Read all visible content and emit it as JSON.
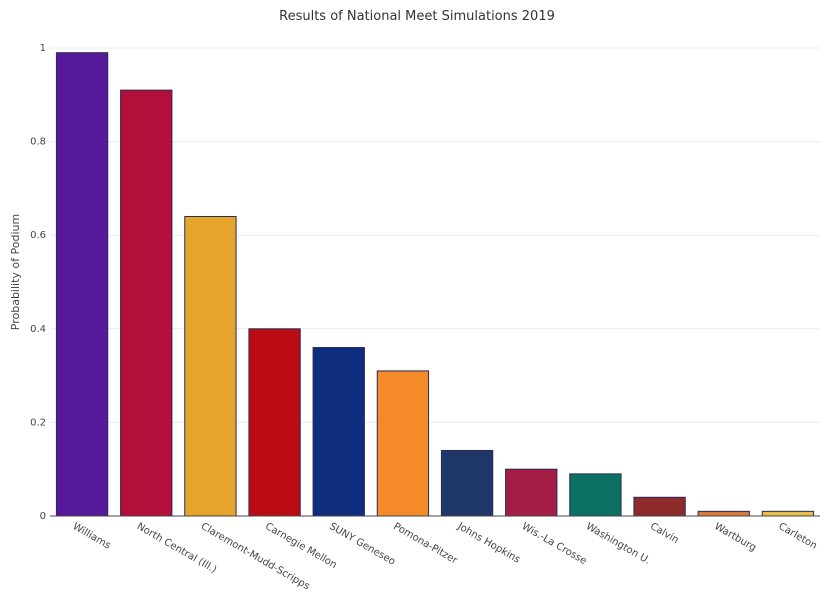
{
  "chart_data": {
    "type": "bar",
    "title": "Results of National Meet Simulations 2019",
    "xlabel": "",
    "ylabel": "Probability of Podium",
    "ylim": [
      0,
      1
    ],
    "yticks": [
      0,
      0.2,
      0.4,
      0.6,
      0.8,
      1
    ],
    "ytick_labels": [
      "0",
      "0.2",
      "0.4",
      "0.6",
      "0.8",
      "1"
    ],
    "grid": true,
    "categories": [
      "Williams",
      "North Central (Ill.)",
      "Claremont-Mudd-Scripps",
      "Carnegie Mellon",
      "SUNY Geneseo",
      "Pomona-Pitzer",
      "Johns Hopkins",
      "Wis.-La Crosse",
      "Washington U.",
      "Calvin",
      "Wartburg",
      "Carleton"
    ],
    "values": [
      0.99,
      0.91,
      0.64,
      0.4,
      0.36,
      0.31,
      0.14,
      0.1,
      0.09,
      0.04,
      0.01,
      0.01
    ],
    "colors": [
      "#55199a",
      "#b30f3a",
      "#e5a52a",
      "#bb0b15",
      "#0f2d7f",
      "#f58a28",
      "#1e3766",
      "#a41d45",
      "#0c7062",
      "#8d2b2c",
      "#d9783a",
      "#e7c04a"
    ]
  }
}
